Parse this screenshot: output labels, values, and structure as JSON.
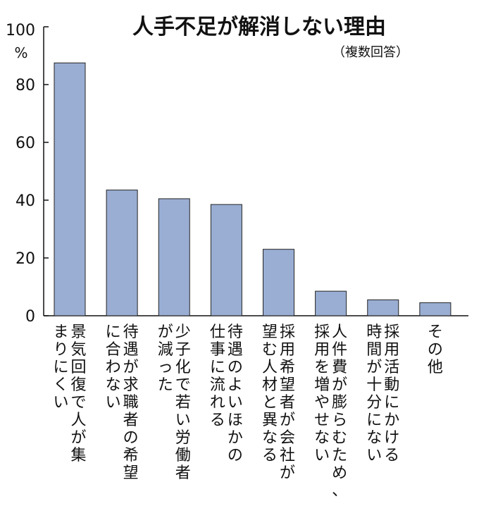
{
  "chart_data": {
    "type": "bar",
    "title": "人手不足が解消しない理由",
    "subtitle": "（複数回答）",
    "y_unit": "%",
    "ylim": [
      0,
      100
    ],
    "y_ticks": [
      "100",
      "80",
      "60",
      "40",
      "20",
      "0"
    ],
    "y_tick_values": [
      100,
      80,
      60,
      40,
      20,
      0
    ],
    "grid": false,
    "categories": [
      [
        "景気回復で人が集",
        "まりにくい"
      ],
      [
        "待遇が求職者の希望",
        "に合わない"
      ],
      [
        "少子化で若い労働者",
        "が減った"
      ],
      [
        "待遇のよいほかの",
        "仕事に流れる"
      ],
      [
        "採用希望者が会社が",
        "望む人材と異なる"
      ],
      [
        "人件費が膨らむため、",
        "採用を増やせない"
      ],
      [
        "採用活動にかける",
        "時間が十分にない"
      ],
      [
        "その他"
      ]
    ],
    "values": [
      87.5,
      43.5,
      40.5,
      38.5,
      23,
      8.5,
      5.5,
      4.5
    ]
  }
}
